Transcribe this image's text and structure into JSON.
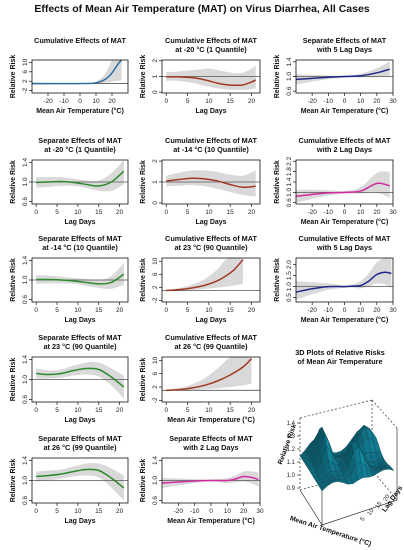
{
  "figure_title": "Effects of Mean Air Temperature (MAT) on Virus Diarrhea, All Cases",
  "colors": {
    "blue": "#2b6f9f",
    "red": "#a03a24",
    "darkblue": "#1e2a8a",
    "green": "#2c8a2c",
    "magenta": "#d02c9c",
    "band": "#d9d9d9",
    "surface": "#2f97a8"
  },
  "chart_data": [
    {
      "id": "p1",
      "type": "line",
      "title": [
        "Cumulative Effects of MAT",
        ""
      ],
      "xlabel": "Mean Air Temperature (°C)",
      "ylabel": "Relative Risk",
      "xlim": [
        -30,
        30
      ],
      "ylim": [
        -3,
        11
      ],
      "xticks": [
        -20,
        -10,
        0,
        10,
        20
      ],
      "yticks": [
        -2,
        2,
        6,
        10
      ],
      "ref": 1,
      "color": "blue",
      "series": [
        {
          "x": [
            -30,
            -20,
            -10,
            0,
            5,
            10,
            15,
            18,
            20,
            22,
            24,
            26
          ],
          "y": [
            1,
            1,
            1,
            1,
            1.05,
            1.3,
            2.5,
            4,
            5.5,
            7.5,
            9.5,
            11
          ],
          "lo": [
            0.6,
            0.7,
            0.8,
            0.9,
            0.95,
            1.0,
            1.3,
            1.6,
            1.8,
            2.0,
            2.2,
            2.4
          ],
          "hi": [
            1.6,
            1.3,
            1.15,
            1.05,
            1.2,
            1.8,
            4.5,
            8,
            11,
            11,
            11,
            11
          ]
        }
      ]
    },
    {
      "id": "p2",
      "type": "line",
      "title": [
        "Cumulative Effects of MAT",
        "at -20 °C (1 Quantile)"
      ],
      "xlabel": "Lag Days",
      "ylabel": "Relative Risk",
      "xlim": [
        -1,
        22
      ],
      "ylim": [
        -0.05,
        2.05
      ],
      "xticks": [
        0,
        5,
        10,
        15,
        20
      ],
      "yticks": [
        0.0,
        1.0,
        2.0
      ],
      "ref": 1,
      "color": "red",
      "series": [
        {
          "x": [
            0,
            2,
            4,
            6,
            8,
            10,
            12,
            14,
            16,
            18,
            20,
            21
          ],
          "y": [
            0.97,
            0.98,
            0.96,
            0.93,
            0.85,
            0.72,
            0.58,
            0.48,
            0.44,
            0.47,
            0.65,
            0.78
          ],
          "lo": [
            0.72,
            0.74,
            0.68,
            0.6,
            0.48,
            0.35,
            0.25,
            0.18,
            0.15,
            0.15,
            0.2,
            0.25
          ],
          "hi": [
            1.28,
            1.3,
            1.35,
            1.4,
            1.45,
            1.5,
            1.42,
            1.3,
            1.22,
            1.25,
            1.5,
            1.7
          ]
        }
      ]
    },
    {
      "id": "p3",
      "type": "line",
      "title": [
        "Separate Effects of MAT",
        "with 5 Lag Days"
      ],
      "xlabel": "Mean Air Temperature (°C)",
      "ylabel": "Relative Risk",
      "xlim": [
        -30,
        30
      ],
      "ylim": [
        0.55,
        1.45
      ],
      "xticks": [
        -20,
        -10,
        0,
        10,
        20,
        30
      ],
      "yticks": [
        0.6,
        1.0,
        1.4
      ],
      "ref": 1,
      "color": "darkblue",
      "series": [
        {
          "x": [
            -30,
            -20,
            -10,
            0,
            10,
            20,
            28
          ],
          "y": [
            0.92,
            0.95,
            0.98,
            1.0,
            1.02,
            1.1,
            1.2
          ],
          "lo": [
            0.78,
            0.86,
            0.93,
            0.97,
            0.97,
            0.98,
            1.0
          ],
          "hi": [
            1.06,
            1.04,
            1.03,
            1.03,
            1.08,
            1.22,
            1.42
          ]
        }
      ]
    },
    {
      "id": "p4",
      "type": "line",
      "title": [
        "Separate Effects of MAT",
        "at -20 °C (1 Quantile)"
      ],
      "xlabel": "Lag Days",
      "ylabel": "Relative Risk",
      "xlim": [
        -1,
        22
      ],
      "ylim": [
        0.55,
        1.45
      ],
      "xticks": [
        0,
        5,
        10,
        15,
        20
      ],
      "yticks": [
        0.6,
        1.0,
        1.4
      ],
      "ref": 1,
      "color": "green",
      "series": [
        {
          "x": [
            0,
            3,
            6,
            9,
            12,
            15,
            18,
            21
          ],
          "y": [
            0.99,
            1.0,
            1.01,
            0.99,
            0.95,
            0.92,
            1.0,
            1.22
          ],
          "lo": [
            0.88,
            0.9,
            0.92,
            0.92,
            0.88,
            0.82,
            0.82,
            0.95
          ],
          "hi": [
            1.1,
            1.1,
            1.1,
            1.07,
            1.03,
            1.03,
            1.18,
            1.45
          ]
        }
      ]
    },
    {
      "id": "p5",
      "type": "line",
      "title": [
        "Cumulative Effects of MAT",
        "at -14 °C (10 Quantile)"
      ],
      "xlabel": "Lag Days",
      "ylabel": "Relative Risk",
      "xlim": [
        -1,
        22
      ],
      "ylim": [
        -0.05,
        2.05
      ],
      "xticks": [
        0,
        5,
        10,
        15,
        20
      ],
      "yticks": [
        0.0,
        1.0,
        2.0
      ],
      "ref": 1,
      "color": "red",
      "series": [
        {
          "x": [
            0,
            3,
            6,
            9,
            12,
            15,
            18,
            21
          ],
          "y": [
            1.05,
            1.12,
            1.18,
            1.15,
            1.05,
            0.88,
            0.75,
            0.8
          ],
          "lo": [
            0.8,
            0.82,
            0.85,
            0.8,
            0.68,
            0.52,
            0.38,
            0.3
          ],
          "hi": [
            1.3,
            1.45,
            1.55,
            1.55,
            1.48,
            1.35,
            1.3,
            1.55
          ]
        }
      ]
    },
    {
      "id": "p6",
      "type": "line",
      "title": [
        "Cumulative Effects of MAT",
        "with 2 Lag Days"
      ],
      "xlabel": "Mean Air Temperature (°C)",
      "ylabel": "Relative Risk",
      "xlim": [
        -30,
        30
      ],
      "ylim": [
        0.55,
        2.25
      ],
      "xticks": [
        -20,
        -10,
        0,
        10,
        20,
        30
      ],
      "yticks": [
        0.6,
        1.0,
        1.4,
        1.8,
        2.2
      ],
      "ref": 1,
      "color": "magenta",
      "series": [
        {
          "x": [
            -30,
            -20,
            -10,
            0,
            10,
            18,
            22,
            28
          ],
          "y": [
            0.85,
            0.92,
            0.98,
            1.0,
            1.05,
            1.3,
            1.35,
            1.25
          ],
          "lo": [
            0.6,
            0.75,
            0.88,
            0.95,
            0.95,
            1.0,
            0.95,
            0.8
          ],
          "hi": [
            1.1,
            1.1,
            1.08,
            1.05,
            1.2,
            1.65,
            1.8,
            1.8
          ]
        }
      ]
    },
    {
      "id": "p7",
      "type": "line",
      "title": [
        "Separate Effects of MAT",
        "at -14 °C (10 Quantile)"
      ],
      "xlabel": "Lag Days",
      "ylabel": "Relative Risk",
      "xlim": [
        -1,
        22
      ],
      "ylim": [
        0.55,
        1.45
      ],
      "xticks": [
        0,
        5,
        10,
        15,
        20
      ],
      "yticks": [
        0.6,
        1.0,
        1.4
      ],
      "ref": 1,
      "color": "green",
      "series": [
        {
          "x": [
            0,
            3,
            6,
            9,
            12,
            15,
            18,
            21
          ],
          "y": [
            1.01,
            1.01,
            1.0,
            0.98,
            0.95,
            0.92,
            0.95,
            1.12
          ],
          "lo": [
            0.92,
            0.93,
            0.93,
            0.92,
            0.88,
            0.84,
            0.82,
            0.9
          ],
          "hi": [
            1.1,
            1.09,
            1.07,
            1.04,
            1.02,
            1.0,
            1.08,
            1.35
          ]
        }
      ]
    },
    {
      "id": "p8",
      "type": "line",
      "title": [
        "Cumulative Effects of MAT",
        "at 23 °C (90 Quantile)"
      ],
      "xlabel": "Lag Days",
      "ylabel": "Relative Risk",
      "xlim": [
        -1,
        22
      ],
      "ylim": [
        -2.5,
        11
      ],
      "xticks": [
        0,
        5,
        10,
        15,
        20
      ],
      "yticks": [
        -2,
        2,
        6,
        10
      ],
      "ref": 1,
      "color": "red",
      "series": [
        {
          "x": [
            0,
            3,
            6,
            9,
            12,
            14,
            16,
            18
          ],
          "y": [
            1.0,
            1.3,
            1.8,
            2.6,
            4.0,
            5.5,
            7.5,
            10.5
          ],
          "lo": [
            0.9,
            1.0,
            1.2,
            1.5,
            1.9,
            2.2,
            2.6,
            3.0
          ],
          "hi": [
            1.2,
            1.8,
            2.8,
            4.5,
            7.5,
            10.5,
            11,
            11
          ]
        }
      ]
    },
    {
      "id": "p9",
      "type": "line",
      "title": [
        "Cumulative Effects of MAT",
        "with 5 Lag Days"
      ],
      "xlabel": "Mean Air Temperature (°C)",
      "ylabel": "Relative Risk",
      "xlim": [
        -30,
        30
      ],
      "ylim": [
        0.3,
        2.3
      ],
      "xticks": [
        -20,
        -10,
        0,
        10,
        20,
        30
      ],
      "yticks": [
        0.5,
        1.0,
        1.5,
        2.0
      ],
      "ref": 1,
      "color": "darkblue",
      "series": [
        {
          "x": [
            -30,
            -20,
            -10,
            0,
            5,
            10,
            15,
            20,
            25,
            29
          ],
          "y": [
            0.75,
            0.9,
            1.0,
            1.0,
            1.02,
            1.05,
            1.25,
            1.55,
            1.65,
            1.6
          ],
          "lo": [
            0.4,
            0.65,
            0.85,
            0.95,
            0.95,
            0.92,
            1.0,
            1.15,
            1.1,
            0.95
          ],
          "hi": [
            1.25,
            1.2,
            1.15,
            1.05,
            1.1,
            1.25,
            1.6,
            2.1,
            2.3,
            2.3
          ]
        }
      ]
    },
    {
      "id": "p10",
      "type": "line",
      "title": [
        "Separate Effects of MAT",
        "at 23 °C (90 Quantile)"
      ],
      "xlabel": "Lag Days",
      "ylabel": "Relative Risk",
      "xlim": [
        -1,
        22
      ],
      "ylim": [
        0.55,
        1.45
      ],
      "xticks": [
        0,
        5,
        10,
        15,
        20
      ],
      "yticks": [
        0.6,
        1.0,
        1.4
      ],
      "ref": 1,
      "color": "green",
      "series": [
        {
          "x": [
            0,
            3,
            6,
            9,
            12,
            15,
            18,
            21
          ],
          "y": [
            1.12,
            1.1,
            1.12,
            1.18,
            1.22,
            1.2,
            1.05,
            0.85
          ],
          "lo": [
            1.02,
            1.02,
            1.04,
            1.08,
            1.1,
            1.06,
            0.88,
            0.62
          ],
          "hi": [
            1.22,
            1.18,
            1.2,
            1.28,
            1.34,
            1.34,
            1.22,
            1.08
          ]
        }
      ]
    },
    {
      "id": "p11",
      "type": "line",
      "title": [
        "Cumulative Effects of MAT",
        "at 26 °C (99 Quantile)"
      ],
      "xlabel": "Mean Air Temperature (°C)",
      "ylabel": "Relative Risk",
      "xlim": [
        -1,
        22
      ],
      "ylim": [
        -2.5,
        11
      ],
      "xticks": [
        0,
        5,
        10,
        15,
        20
      ],
      "yticks": [
        -2,
        2,
        6,
        10
      ],
      "ref": 1,
      "color": "red",
      "series": [
        {
          "x": [
            0,
            3,
            6,
            9,
            12,
            15,
            18,
            20
          ],
          "y": [
            1.0,
            1.2,
            1.7,
            2.5,
            3.8,
            5.6,
            8.0,
            10.5
          ],
          "lo": [
            0.9,
            0.95,
            1.1,
            1.3,
            1.6,
            2.0,
            2.5,
            3.0
          ],
          "hi": [
            1.2,
            1.7,
            2.8,
            4.6,
            7.5,
            10.8,
            11,
            11
          ]
        }
      ]
    },
    {
      "id": "p12",
      "type": "line",
      "title": [
        "Separate Effects of MAT",
        "at 26 °C (99 Quantile)"
      ],
      "xlabel": "Lag Days",
      "ylabel": "Relative Risk",
      "xlim": [
        -1,
        22
      ],
      "ylim": [
        0.55,
        1.45
      ],
      "xticks": [
        0,
        5,
        10,
        15,
        20
      ],
      "yticks": [
        0.6,
        1.0,
        1.4
      ],
      "ref": 1,
      "color": "green",
      "series": [
        {
          "x": [
            0,
            3,
            6,
            9,
            12,
            15,
            18,
            21
          ],
          "y": [
            1.08,
            1.1,
            1.13,
            1.18,
            1.22,
            1.2,
            1.05,
            0.85
          ],
          "lo": [
            0.98,
            1.0,
            1.04,
            1.08,
            1.1,
            1.06,
            0.86,
            0.6
          ],
          "hi": [
            1.18,
            1.2,
            1.22,
            1.28,
            1.34,
            1.34,
            1.24,
            1.1
          ]
        }
      ]
    },
    {
      "id": "p13",
      "type": "line",
      "title": [
        "Separate Effects of MAT",
        "with 2 Lag Days"
      ],
      "xlabel": "Mean Air Temperature (°C)",
      "ylabel": "Relative Risk",
      "xlim": [
        -30,
        30
      ],
      "ylim": [
        0.55,
        1.45
      ],
      "xticks": [
        -20,
        -10,
        0,
        10,
        20,
        30
      ],
      "yticks": [
        0.6,
        1.0,
        1.4
      ],
      "ref": 1,
      "color": "magenta",
      "series": [
        {
          "x": [
            -30,
            -20,
            -10,
            0,
            10,
            15,
            20,
            25,
            29
          ],
          "y": [
            0.95,
            0.97,
            0.99,
            1.0,
            1.0,
            1.03,
            1.08,
            1.06,
            1.02
          ],
          "lo": [
            0.85,
            0.9,
            0.95,
            0.98,
            0.95,
            0.96,
            0.98,
            0.94,
            0.88
          ],
          "hi": [
            1.05,
            1.04,
            1.03,
            1.02,
            1.05,
            1.1,
            1.18,
            1.18,
            1.16
          ]
        }
      ]
    },
    {
      "id": "p14",
      "type": "surface",
      "title": [
        "3D Plots of Relative Risks",
        "of Mean Air Temperature"
      ],
      "xlabel": "Mean Air Temperature (°C)",
      "ylabel": "Lag Days",
      "zlabel": "Relative Risk",
      "zticks": [
        "0.9",
        "1.0",
        "1.1",
        "1.2",
        "1.3",
        "1.4"
      ],
      "lag_ticks": [
        "5",
        "10",
        "15",
        "20"
      ]
    }
  ]
}
